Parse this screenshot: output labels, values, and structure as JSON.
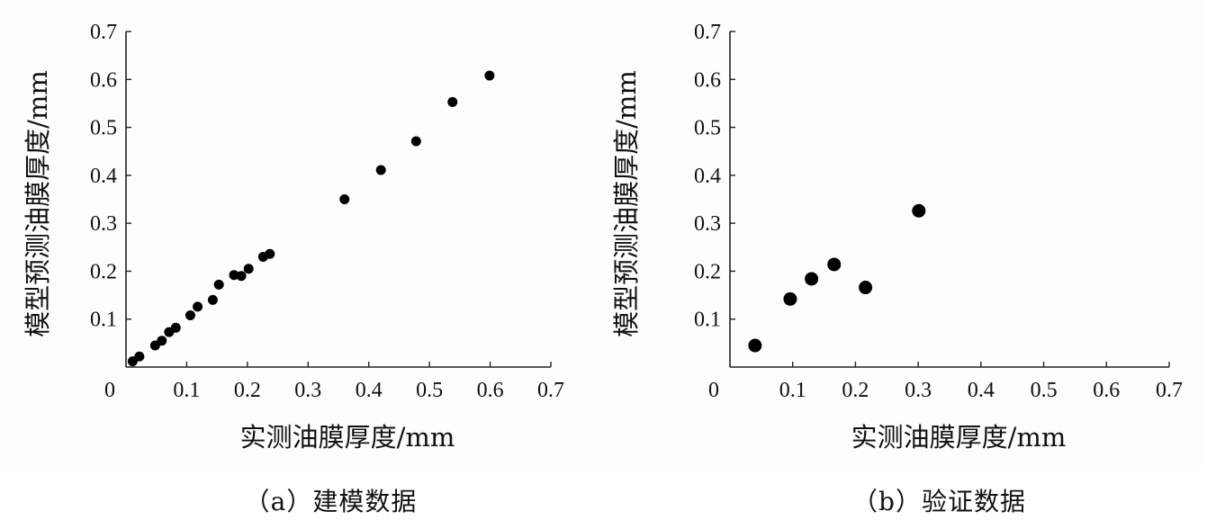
{
  "chart_data": [
    {
      "type": "scatter",
      "caption": "（a）建模数据",
      "xlabel": "实测油膜厚度/mm",
      "ylabel": "模型预测油膜厚度/mm",
      "xlim": [
        0,
        0.7
      ],
      "ylim": [
        0,
        0.7
      ],
      "x_ticks": [
        "0",
        "0.1",
        "0.2",
        "0.3",
        "0.4",
        "0.5",
        "0.6",
        "0.7"
      ],
      "y_ticks": [
        "0.1",
        "0.2",
        "0.3",
        "0.4",
        "0.5",
        "0.6",
        "0.7"
      ],
      "points": [
        {
          "x": 0.011,
          "y": 0.012
        },
        {
          "x": 0.022,
          "y": 0.022
        },
        {
          "x": 0.048,
          "y": 0.045
        },
        {
          "x": 0.059,
          "y": 0.055
        },
        {
          "x": 0.071,
          "y": 0.073
        },
        {
          "x": 0.082,
          "y": 0.082
        },
        {
          "x": 0.106,
          "y": 0.108
        },
        {
          "x": 0.118,
          "y": 0.126
        },
        {
          "x": 0.143,
          "y": 0.14
        },
        {
          "x": 0.153,
          "y": 0.172
        },
        {
          "x": 0.178,
          "y": 0.192
        },
        {
          "x": 0.19,
          "y": 0.19
        },
        {
          "x": 0.202,
          "y": 0.205
        },
        {
          "x": 0.226,
          "y": 0.23
        },
        {
          "x": 0.237,
          "y": 0.236
        },
        {
          "x": 0.36,
          "y": 0.35
        },
        {
          "x": 0.42,
          "y": 0.411
        },
        {
          "x": 0.478,
          "y": 0.471
        },
        {
          "x": 0.538,
          "y": 0.553
        },
        {
          "x": 0.599,
          "y": 0.608
        }
      ]
    },
    {
      "type": "scatter",
      "caption": "（b）验证数据",
      "xlabel": "实测油膜厚度/mm",
      "ylabel": "模型预测油膜厚度/mm",
      "xlim": [
        0,
        0.7
      ],
      "ylim": [
        0,
        0.7
      ],
      "x_ticks": [
        "0",
        "0.1",
        "0.2",
        "0.3",
        "0.4",
        "0.5",
        "0.6",
        "0.7"
      ],
      "y_ticks": [
        "0.1",
        "0.2",
        "0.3",
        "0.4",
        "0.5",
        "0.6",
        "0.7"
      ],
      "points": [
        {
          "x": 0.04,
          "y": 0.045
        },
        {
          "x": 0.096,
          "y": 0.142
        },
        {
          "x": 0.13,
          "y": 0.184
        },
        {
          "x": 0.166,
          "y": 0.214
        },
        {
          "x": 0.216,
          "y": 0.166
        },
        {
          "x": 0.301,
          "y": 0.326
        }
      ]
    }
  ]
}
